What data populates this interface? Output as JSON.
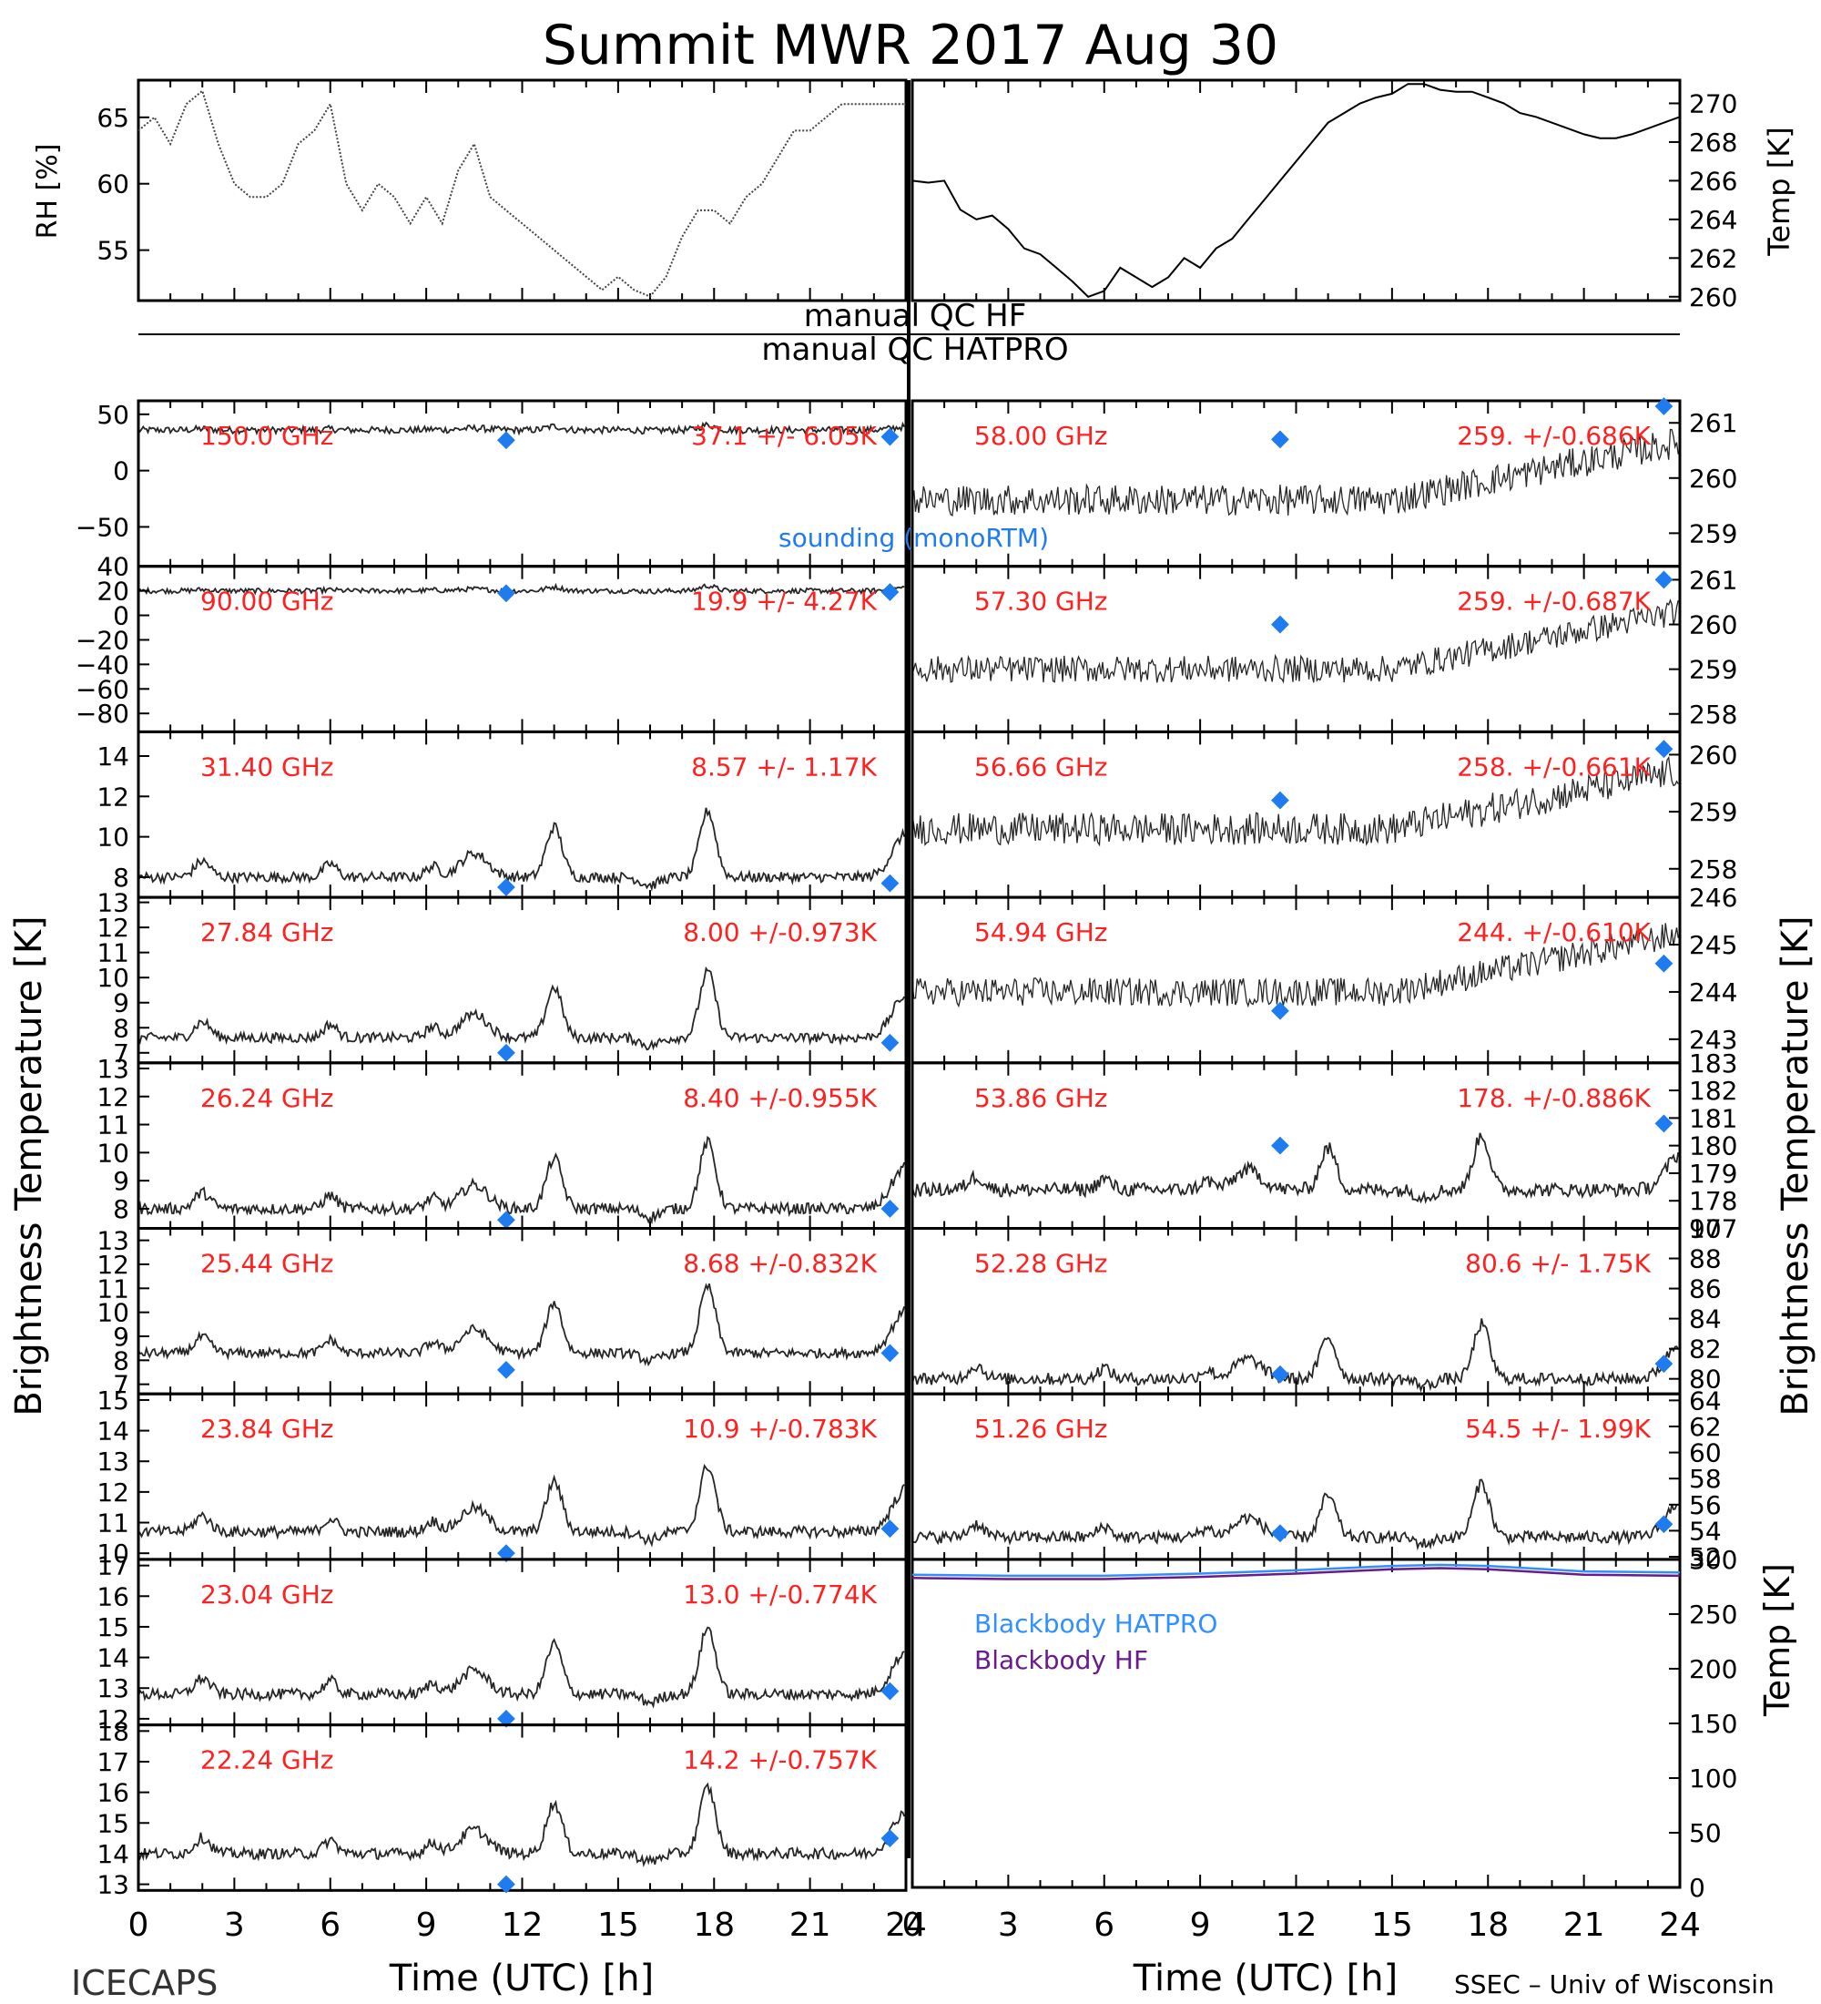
{
  "title": "Summit MWR 2017 Aug 30",
  "footer_left": "ICECAPS",
  "footer_right": "SSEC – Univ of Wisconsin",
  "xlabel": "Time (UTC) [h]",
  "ylabel_main": "Brightness Temperature [K]",
  "qc_labels": [
    "manual QC HF",
    "manual QC HATPRO"
  ],
  "colors": {
    "stats": "#ff2020",
    "sounding": "#1e7cf0",
    "bb_hatpro": "#3090ff",
    "bb_hf": "#6a1a8a",
    "trace": "#000000"
  },
  "chart_data": {
    "type": "line",
    "x_ticks": [
      0,
      3,
      6,
      9,
      12,
      15,
      18,
      21,
      24
    ],
    "xlim": [
      0,
      24
    ],
    "met": {
      "rh": {
        "ylabel": "RH [%]",
        "ylim": [
          51.2,
          67.8
        ],
        "ticks": [
          55,
          60,
          65
        ],
        "x": [
          0,
          0.5,
          1.0,
          1.5,
          2.0,
          2.5,
          3.0,
          3.5,
          4.0,
          4.5,
          5.0,
          5.5,
          6.0,
          6.5,
          7.0,
          7.5,
          8.0,
          8.5,
          9.0,
          9.5,
          10.0,
          10.5,
          11.0,
          11.5,
          12.0,
          12.5,
          13.0,
          13.5,
          14.0,
          14.5,
          15.0,
          15.5,
          16.0,
          16.5,
          17.0,
          17.5,
          18.0,
          18.5,
          19.0,
          19.5,
          20.0,
          20.5,
          21.0,
          21.5,
          22.0,
          22.5,
          23.0,
          23.5,
          24.0
        ],
        "y": [
          64,
          65,
          63,
          66,
          67,
          63,
          60,
          59,
          59,
          60,
          63,
          64,
          66,
          60,
          58,
          60,
          59,
          57,
          59,
          57,
          61,
          63,
          59,
          58,
          57,
          56,
          55,
          54,
          53,
          52,
          53,
          52,
          51.5,
          53,
          56,
          58,
          58,
          57,
          59,
          60,
          62,
          64,
          64,
          65,
          66,
          66,
          66,
          66,
          66
        ]
      },
      "temp": {
        "ylabel": "Temp [K]",
        "ylim": [
          259.8,
          271.2
        ],
        "ticks": [
          260,
          262,
          264,
          266,
          268,
          270
        ],
        "x": [
          0,
          0.5,
          1.0,
          1.5,
          2.0,
          2.5,
          3.0,
          3.5,
          4.0,
          4.5,
          5.0,
          5.5,
          6.0,
          6.5,
          7.0,
          7.5,
          8.0,
          8.5,
          9.0,
          9.5,
          10.0,
          10.5,
          11.0,
          11.5,
          12.0,
          12.5,
          13.0,
          13.5,
          14.0,
          14.5,
          15.0,
          15.5,
          16.0,
          16.5,
          17.0,
          17.5,
          18.0,
          18.5,
          19.0,
          19.5,
          20.0,
          20.5,
          21.0,
          21.5,
          22.0,
          22.5,
          23.0,
          23.5,
          24.0
        ],
        "y": [
          266,
          265.9,
          266,
          264.5,
          264,
          264.2,
          263.5,
          262.5,
          262.2,
          261.5,
          260.8,
          260,
          260.3,
          261.5,
          261,
          260.5,
          261,
          262,
          261.5,
          262.5,
          263,
          264,
          265,
          266,
          267,
          268,
          269,
          269.5,
          270,
          270.3,
          270.5,
          271,
          271,
          270.7,
          270.6,
          270.6,
          270.3,
          270,
          269.5,
          269.3,
          269,
          268.7,
          268.4,
          268.2,
          268.2,
          268.4,
          268.7,
          269,
          269.3
        ]
      }
    },
    "left_panels": [
      {
        "freq": "150.0 GHz",
        "stats": "37.1 +/- 6.05K",
        "ylim": [
          -85,
          62
        ],
        "ticks": [
          50,
          0,
          -50
        ],
        "base": 36,
        "noise": 3,
        "sounding": [
          [
            11.5,
            27
          ],
          [
            23.5,
            30
          ]
        ]
      },
      {
        "freq": "90.00 GHz",
        "stats": "19.9 +/- 4.27K",
        "ylim": [
          -95,
          40
        ],
        "ticks": [
          40,
          20,
          0,
          -20,
          -40,
          -60,
          -80
        ],
        "base": 20,
        "noise": 2,
        "sounding": [
          [
            11.5,
            18
          ],
          [
            23.5,
            19
          ]
        ]
      },
      {
        "freq": "31.40 GHz",
        "stats": "8.57 +/- 1.17K",
        "ylim": [
          7.0,
          15.2
        ],
        "ticks": [
          8,
          10,
          12,
          14
        ],
        "base": 8.0,
        "noise": 0.25,
        "sounding": [
          [
            11.5,
            7.5
          ],
          [
            23.5,
            7.7
          ]
        ]
      },
      {
        "freq": "27.84 GHz",
        "stats": "8.00 +/-0.973K",
        "ylim": [
          6.6,
          13.2
        ],
        "ticks": [
          7,
          8,
          9,
          10,
          11,
          12,
          13
        ],
        "base": 7.6,
        "noise": 0.2,
        "sounding": [
          [
            11.5,
            7.0
          ],
          [
            23.5,
            7.4
          ]
        ]
      },
      {
        "freq": "26.24 GHz",
        "stats": "8.40 +/-0.955K",
        "ylim": [
          7.3,
          13.2
        ],
        "ticks": [
          8,
          9,
          10,
          11,
          12,
          13
        ],
        "base": 8.0,
        "noise": 0.2,
        "sounding": [
          [
            11.5,
            7.6
          ],
          [
            23.5,
            8.0
          ]
        ]
      },
      {
        "freq": "25.44 GHz",
        "stats": "8.68 +/-0.832K",
        "ylim": [
          6.6,
          13.5
        ],
        "ticks": [
          7,
          8,
          9,
          10,
          11,
          12,
          13
        ],
        "base": 8.3,
        "noise": 0.2,
        "sounding": [
          [
            11.5,
            7.6
          ],
          [
            23.5,
            8.3
          ]
        ]
      },
      {
        "freq": "23.84 GHz",
        "stats": "10.9 +/-0.783K",
        "ylim": [
          9.8,
          15.2
        ],
        "ticks": [
          10,
          11,
          12,
          13,
          14,
          15
        ],
        "base": 10.7,
        "noise": 0.18,
        "sounding": [
          [
            11.5,
            10.0
          ],
          [
            23.5,
            10.8
          ]
        ]
      },
      {
        "freq": "23.04 GHz",
        "stats": "13.0 +/-0.774K",
        "ylim": [
          11.8,
          17.2
        ],
        "ticks": [
          12,
          13,
          14,
          15,
          16,
          17
        ],
        "base": 12.8,
        "noise": 0.18,
        "sounding": [
          [
            11.5,
            12.0
          ],
          [
            23.5,
            12.9
          ]
        ]
      },
      {
        "freq": "22.24 GHz",
        "stats": "14.2 +/-0.757K",
        "ylim": [
          12.8,
          18.2
        ],
        "ticks": [
          13,
          14,
          15,
          16,
          17,
          18
        ],
        "base": 14.0,
        "noise": 0.18,
        "sounding": [
          [
            11.5,
            13.0
          ],
          [
            23.5,
            14.5
          ]
        ]
      }
    ],
    "right_panels": [
      {
        "freq": "58.00 GHz",
        "stats": "259. +/-0.686K",
        "ylim": [
          258.4,
          261.4
        ],
        "ticks": [
          259,
          260,
          261
        ],
        "base": 259.6,
        "noise": 0.28,
        "sounding": [
          [
            11.5,
            260.7
          ],
          [
            23.5,
            261.4
          ]
        ]
      },
      {
        "freq": "57.30 GHz",
        "stats": "259. +/-0.687K",
        "ylim": [
          257.6,
          261.3
        ],
        "ticks": [
          258,
          259,
          260,
          261
        ],
        "base": 259.0,
        "noise": 0.3,
        "sounding": [
          [
            11.5,
            260.0
          ],
          [
            23.5,
            261.0
          ]
        ]
      },
      {
        "freq": "56.66 GHz",
        "stats": "258. +/-0.661K",
        "ylim": [
          257.5,
          260.4
        ],
        "ticks": [
          258,
          259,
          260
        ],
        "base": 258.7,
        "noise": 0.28,
        "sounding": [
          [
            11.5,
            259.2
          ],
          [
            23.5,
            260.1
          ]
        ]
      },
      {
        "freq": "54.94 GHz",
        "stats": "244. +/-0.610K",
        "ylim": [
          242.5,
          246.0
        ],
        "ticks": [
          243,
          244,
          245,
          246
        ],
        "base": 244.0,
        "noise": 0.3,
        "sounding": [
          [
            11.5,
            243.6
          ],
          [
            23.5,
            244.6
          ]
        ]
      },
      {
        "freq": "53.86 GHz",
        "stats": "178. +/-0.886K",
        "ylim": [
          177.0,
          183.0
        ],
        "ticks": [
          177,
          178,
          179,
          180,
          181,
          182,
          183
        ],
        "base": 178.4,
        "noise": 0.25,
        "sounding": [
          [
            11.5,
            180.0
          ],
          [
            23.5,
            180.8
          ]
        ]
      },
      {
        "freq": "52.28 GHz",
        "stats": "80.6 +/- 1.75K",
        "ylim": [
          79.0,
          90.0
        ],
        "ticks": [
          80,
          82,
          84,
          86,
          88,
          90
        ],
        "base": 80.0,
        "noise": 0.4,
        "sounding": [
          [
            11.5,
            80.3
          ],
          [
            23.5,
            81.0
          ]
        ]
      },
      {
        "freq": "51.26 GHz",
        "stats": "54.5 +/- 1.99K",
        "ylim": [
          51.8,
          64.5
        ],
        "ticks": [
          52,
          54,
          56,
          58,
          60,
          62,
          64
        ],
        "base": 53.5,
        "noise": 0.45,
        "sounding": [
          [
            11.5,
            53.8
          ],
          [
            23.5,
            54.5
          ]
        ]
      }
    ],
    "blackbody": {
      "ylabel": "Temp [K]",
      "ylim": [
        0,
        300
      ],
      "ticks": [
        0,
        50,
        100,
        150,
        200,
        250,
        300
      ],
      "hatpro": {
        "name": "Blackbody HATPRO",
        "x": [
          0,
          3,
          6,
          9,
          12,
          15,
          16.5,
          18,
          21,
          24
        ],
        "y": [
          286,
          285,
          285,
          287,
          290,
          294,
          295,
          294,
          289,
          288
        ]
      },
      "hf": {
        "name": "Blackbody HF",
        "x": [
          0,
          3,
          6,
          9,
          12,
          15,
          16.5,
          18,
          21,
          24
        ],
        "y": [
          283,
          282,
          282,
          284,
          287,
          291,
          292,
          291,
          286,
          285
        ]
      }
    },
    "sounding_label": "sounding (monoRTM)"
  }
}
